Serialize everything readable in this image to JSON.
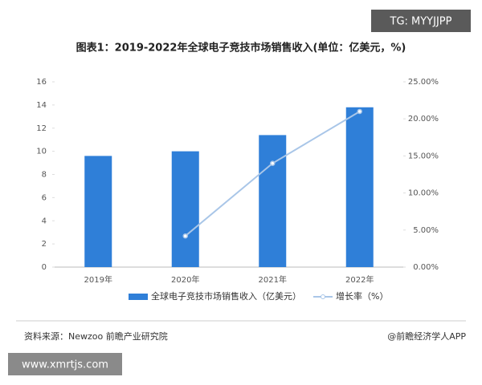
{
  "watermark": "TG: MYYJJPP",
  "site": "www.xmrtjs.com",
  "source": "资料来源：Newzoo 前瞻产业研究院",
  "credit": "@前瞻经济学人APP",
  "chart_data": {
    "type": "bar-line",
    "title": "图表1：2019-2022年全球电子竞技市场销售收入(单位：亿美元，%)",
    "categories": [
      "2019年",
      "2020年",
      "2021年",
      "2022年"
    ],
    "series": [
      {
        "name": "全球电子竞技市场销售收入（亿美元）",
        "color": "#2f7fd8",
        "type": "bar",
        "values": [
          9.6,
          10.0,
          11.4,
          13.8
        ]
      },
      {
        "name": "增长率（%）",
        "color": "#a9c6e8",
        "type": "line",
        "axis": "y2",
        "values": [
          null,
          4.2,
          14.0,
          21.0
        ]
      }
    ],
    "ylim": [
      0,
      16
    ],
    "yticks": [
      0,
      2,
      4,
      6,
      8,
      10,
      12,
      14,
      16
    ],
    "y2lim": [
      0,
      25
    ],
    "y2ticks": [
      {
        "value": 0,
        "label": "0.00%"
      },
      {
        "value": 5,
        "label": "5.00%"
      },
      {
        "value": 10,
        "label": "10.00%"
      },
      {
        "value": 15,
        "label": "15.00%"
      },
      {
        "value": 20,
        "label": "20.00%"
      },
      {
        "value": 25,
        "label": "25.00%"
      }
    ],
    "grid": false
  }
}
